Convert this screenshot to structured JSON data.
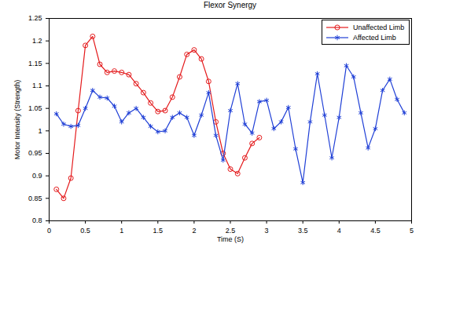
{
  "chart_data": {
    "type": "line",
    "title": "Flexor Synergy",
    "x_label": "Time (S)",
    "y_label": "Motor Intensity (Strength)",
    "xlim": [
      0,
      5
    ],
    "xticks": [
      0,
      0.5,
      1,
      1.5,
      2,
      2.5,
      3,
      3.5,
      4,
      4.5,
      5
    ],
    "ylim": [
      0.8,
      1.25
    ],
    "yticks": [
      0.8,
      0.85,
      0.9,
      0.95,
      1,
      1.05,
      1.1,
      1.15,
      1.2,
      1.25
    ],
    "grid": false,
    "legend": "northeast",
    "series": [
      {
        "name": "Unaffected Limb",
        "color": "#e41a1c",
        "marker": "circle",
        "line_style": "solid",
        "x": [
          0.1,
          0.2,
          0.3,
          0.4,
          0.5,
          0.6,
          0.7,
          0.8,
          0.9,
          1.0,
          1.1,
          1.2,
          1.3,
          1.4,
          1.5,
          1.6,
          1.7,
          1.8,
          1.9,
          2.0,
          2.1,
          2.2,
          2.3,
          2.4,
          2.5,
          2.6,
          2.7,
          2.8,
          2.9
        ],
        "values": [
          0.87,
          0.85,
          0.895,
          1.045,
          1.19,
          1.21,
          1.148,
          1.13,
          1.133,
          1.13,
          1.125,
          1.105,
          1.085,
          1.062,
          1.043,
          1.045,
          1.075,
          1.12,
          1.17,
          1.18,
          1.16,
          1.11,
          1.02,
          0.95,
          0.915,
          0.905,
          0.94,
          0.972,
          0.985
        ]
      },
      {
        "name": "Affected Limb",
        "color": "#1f3fd6",
        "marker": "asterisk",
        "line_style": "solid",
        "x": [
          0.1,
          0.2,
          0.3,
          0.4,
          0.5,
          0.6,
          0.7,
          0.8,
          0.9,
          1.0,
          1.1,
          1.2,
          1.3,
          1.4,
          1.5,
          1.6,
          1.7,
          1.8,
          1.9,
          2.0,
          2.1,
          2.2,
          2.3,
          2.4,
          2.5,
          2.6,
          2.7,
          2.8,
          2.9,
          3.0,
          3.1,
          3.2,
          3.3,
          3.4,
          3.5,
          3.6,
          3.7,
          3.8,
          3.9,
          4.0,
          4.1,
          4.2,
          4.3,
          4.4,
          4.5,
          4.6,
          4.7,
          4.8,
          4.9
        ],
        "values": [
          1.038,
          1.015,
          1.01,
          1.012,
          1.05,
          1.09,
          1.075,
          1.073,
          1.055,
          1.02,
          1.04,
          1.05,
          1.03,
          1.01,
          0.998,
          1.0,
          1.03,
          1.04,
          1.03,
          0.99,
          1.035,
          1.085,
          0.99,
          0.935,
          1.045,
          1.105,
          1.015,
          0.995,
          1.065,
          1.068,
          1.005,
          1.02,
          1.052,
          0.96,
          0.885,
          1.02,
          1.127,
          1.035,
          0.94,
          1.03,
          1.145,
          1.12,
          1.04,
          0.962,
          1.005,
          1.09,
          1.115,
          1.07,
          1.04
        ]
      }
    ]
  }
}
